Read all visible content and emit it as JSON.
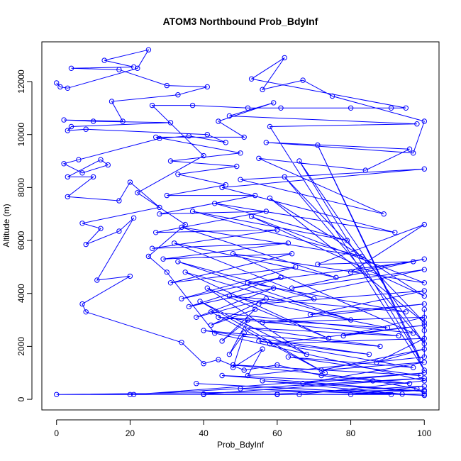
{
  "chart_data": {
    "type": "line",
    "title": "ATOM3 Northbound Prob_BdyInf",
    "xlabel": "Prob_BdyInf",
    "ylabel": "Altitude (m)",
    "xlim": [
      -4,
      104
    ],
    "ylim": [
      -400,
      13500
    ],
    "x_ticks": [
      0,
      20,
      40,
      60,
      80,
      100
    ],
    "y_ticks": [
      0,
      2000,
      4000,
      6000,
      8000,
      10000,
      12000
    ],
    "grid": false,
    "legend": "none",
    "marker": "open-circle",
    "series_color": "#0000ff",
    "series": [
      {
        "points": [
          [
            0,
            11950
          ],
          [
            1,
            11800
          ],
          [
            3,
            11750
          ],
          [
            22,
            12500
          ],
          [
            25,
            13200
          ],
          [
            13,
            12800
          ],
          [
            21,
            12550
          ],
          [
            4,
            12500
          ],
          [
            17,
            12450
          ],
          [
            30,
            11850
          ],
          [
            41,
            11800
          ],
          [
            33,
            11500
          ],
          [
            15,
            11250
          ],
          [
            18,
            10500
          ],
          [
            2,
            10550
          ],
          [
            10,
            10500
          ],
          [
            31,
            10450
          ],
          [
            4,
            10300
          ],
          [
            3,
            10150
          ],
          [
            8,
            10200
          ],
          [
            41,
            10000
          ],
          [
            46,
            9700
          ],
          [
            36,
            9950
          ],
          [
            28,
            9850
          ],
          [
            6,
            9050
          ],
          [
            2,
            8900
          ],
          [
            7,
            8550
          ],
          [
            14,
            8850
          ],
          [
            12,
            9050
          ],
          [
            3,
            8400
          ],
          [
            10,
            8400
          ],
          [
            3,
            7650
          ],
          [
            17,
            7500
          ],
          [
            20,
            8200
          ],
          [
            28,
            7250
          ],
          [
            7,
            6650
          ],
          [
            12,
            6450
          ],
          [
            8,
            5850
          ],
          [
            17,
            6350
          ],
          [
            21,
            6850
          ],
          [
            11,
            4500
          ],
          [
            20,
            4650
          ],
          [
            7,
            3600
          ],
          [
            8,
            3300
          ],
          [
            34,
            2150
          ],
          [
            40,
            1350
          ],
          [
            44,
            1500
          ],
          [
            51,
            1100
          ],
          [
            60,
            1300
          ],
          [
            72,
            900
          ],
          [
            86,
            700
          ],
          [
            98,
            400
          ],
          [
            100,
            200
          ],
          [
            60,
            180
          ],
          [
            40,
            180
          ],
          [
            20,
            180
          ],
          [
            0,
            180
          ],
          [
            100,
            350
          ],
          [
            80,
            180
          ],
          [
            100,
            500
          ],
          [
            60,
            200
          ],
          [
            40,
            200
          ],
          [
            100,
            800
          ],
          [
            21,
            180
          ],
          [
            100,
            1000
          ],
          [
            67,
            600
          ],
          [
            100,
            1400
          ],
          [
            72,
            1100
          ],
          [
            100,
            1900
          ],
          [
            87,
            1400
          ],
          [
            100,
            2300
          ],
          [
            58,
            2100
          ],
          [
            100,
            2800
          ],
          [
            78,
            2400
          ],
          [
            100,
            3100
          ],
          [
            56,
            2900
          ],
          [
            100,
            3600
          ],
          [
            69,
            3200
          ],
          [
            100,
            4100
          ],
          [
            55,
            3600
          ],
          [
            100,
            4900
          ],
          [
            64,
            4200
          ],
          [
            100,
            5300
          ],
          [
            80,
            4800
          ],
          [
            100,
            6600
          ],
          [
            71,
            5100
          ],
          [
            97,
            5200
          ],
          [
            52,
            4400
          ],
          [
            95,
            3300
          ],
          [
            47,
            3900
          ],
          [
            90,
            2700
          ],
          [
            44,
            3100
          ],
          [
            93,
            2400
          ],
          [
            52,
            2700
          ],
          [
            88,
            2000
          ],
          [
            40,
            2600
          ],
          [
            85,
            1700
          ],
          [
            55,
            2200
          ],
          [
            97,
            1200
          ],
          [
            63,
            1600
          ],
          [
            99,
            900
          ],
          [
            48,
            1300
          ],
          [
            96,
            600
          ],
          [
            45,
            900
          ],
          [
            100,
            300
          ],
          [
            56,
            700
          ],
          [
            94,
            200
          ],
          [
            38,
            600
          ],
          [
            100,
            150
          ],
          [
            50,
            400
          ],
          [
            91,
            180
          ],
          [
            66,
            180
          ],
          [
            100,
            700
          ],
          [
            43,
            2500
          ],
          [
            30,
            4800
          ],
          [
            25,
            5400
          ],
          [
            35,
            6600
          ],
          [
            22,
            7800
          ],
          [
            40,
            9200
          ],
          [
            26,
            11100
          ],
          [
            37,
            11100
          ],
          [
            52,
            11000
          ],
          [
            61,
            11000
          ],
          [
            80,
            11000
          ],
          [
            91,
            11000
          ],
          [
            95,
            11000
          ],
          [
            53,
            12100
          ],
          [
            62,
            12900
          ],
          [
            56,
            11700
          ],
          [
            67,
            12050
          ],
          [
            75,
            11450
          ],
          [
            100,
            10500
          ],
          [
            97,
            9300
          ],
          [
            57,
            9700
          ],
          [
            96,
            9450
          ],
          [
            84,
            8650
          ],
          [
            55,
            9100
          ],
          [
            89,
            7000
          ],
          [
            50,
            8300
          ],
          [
            100,
            8700
          ],
          [
            45,
            8000
          ],
          [
            92,
            6300
          ],
          [
            43,
            7400
          ],
          [
            79,
            6000
          ],
          [
            37,
            7100
          ],
          [
            83,
            5400
          ],
          [
            34,
            6500
          ],
          [
            76,
            4600
          ],
          [
            32,
            5900
          ],
          [
            70,
            3800
          ],
          [
            33,
            5200
          ],
          [
            80,
            3000
          ],
          [
            35,
            4800
          ],
          [
            74,
            2300
          ],
          [
            41,
            4200
          ],
          [
            68,
            1700
          ],
          [
            39,
            3700
          ],
          [
            73,
            1000
          ],
          [
            42,
            3300
          ],
          [
            97,
            2500
          ],
          [
            48,
            5500
          ],
          [
            100,
            4400
          ],
          [
            53,
            6900
          ],
          [
            100,
            3900
          ],
          [
            58,
            7600
          ],
          [
            100,
            2900
          ],
          [
            62,
            8400
          ],
          [
            100,
            2100
          ],
          [
            66,
            9000
          ],
          [
            99,
            1500
          ],
          [
            71,
            9600
          ],
          [
            100,
            1100
          ],
          [
            58,
            10300
          ],
          [
            98,
            10400
          ],
          [
            47,
            10700
          ],
          [
            59,
            11200
          ],
          [
            44,
            10500
          ],
          [
            51,
            9900
          ],
          [
            27,
            9900
          ],
          [
            50,
            9300
          ],
          [
            31,
            9000
          ],
          [
            49,
            8800
          ],
          [
            33,
            8500
          ],
          [
            46,
            8100
          ],
          [
            30,
            7700
          ],
          [
            54,
            7700
          ],
          [
            28,
            7000
          ],
          [
            57,
            7100
          ],
          [
            27,
            6300
          ],
          [
            60,
            6400
          ],
          [
            26,
            5700
          ],
          [
            63,
            5900
          ],
          [
            29,
            5300
          ],
          [
            64,
            5500
          ],
          [
            31,
            4400
          ],
          [
            65,
            5000
          ],
          [
            34,
            3800
          ],
          [
            61,
            4600
          ],
          [
            36,
            3500
          ],
          [
            59,
            4200
          ],
          [
            38,
            3100
          ],
          [
            57,
            3800
          ],
          [
            42,
            2800
          ],
          [
            54,
            3400
          ],
          [
            45,
            2200
          ],
          [
            52,
            3000
          ],
          [
            47,
            1700
          ],
          [
            51,
            2500
          ],
          [
            48,
            1200
          ],
          [
            56,
            1900
          ],
          [
            52,
            900
          ],
          [
            100,
            1600
          ],
          [
            100,
            2600
          ],
          [
            100,
            3400
          ]
        ]
      }
    ]
  }
}
